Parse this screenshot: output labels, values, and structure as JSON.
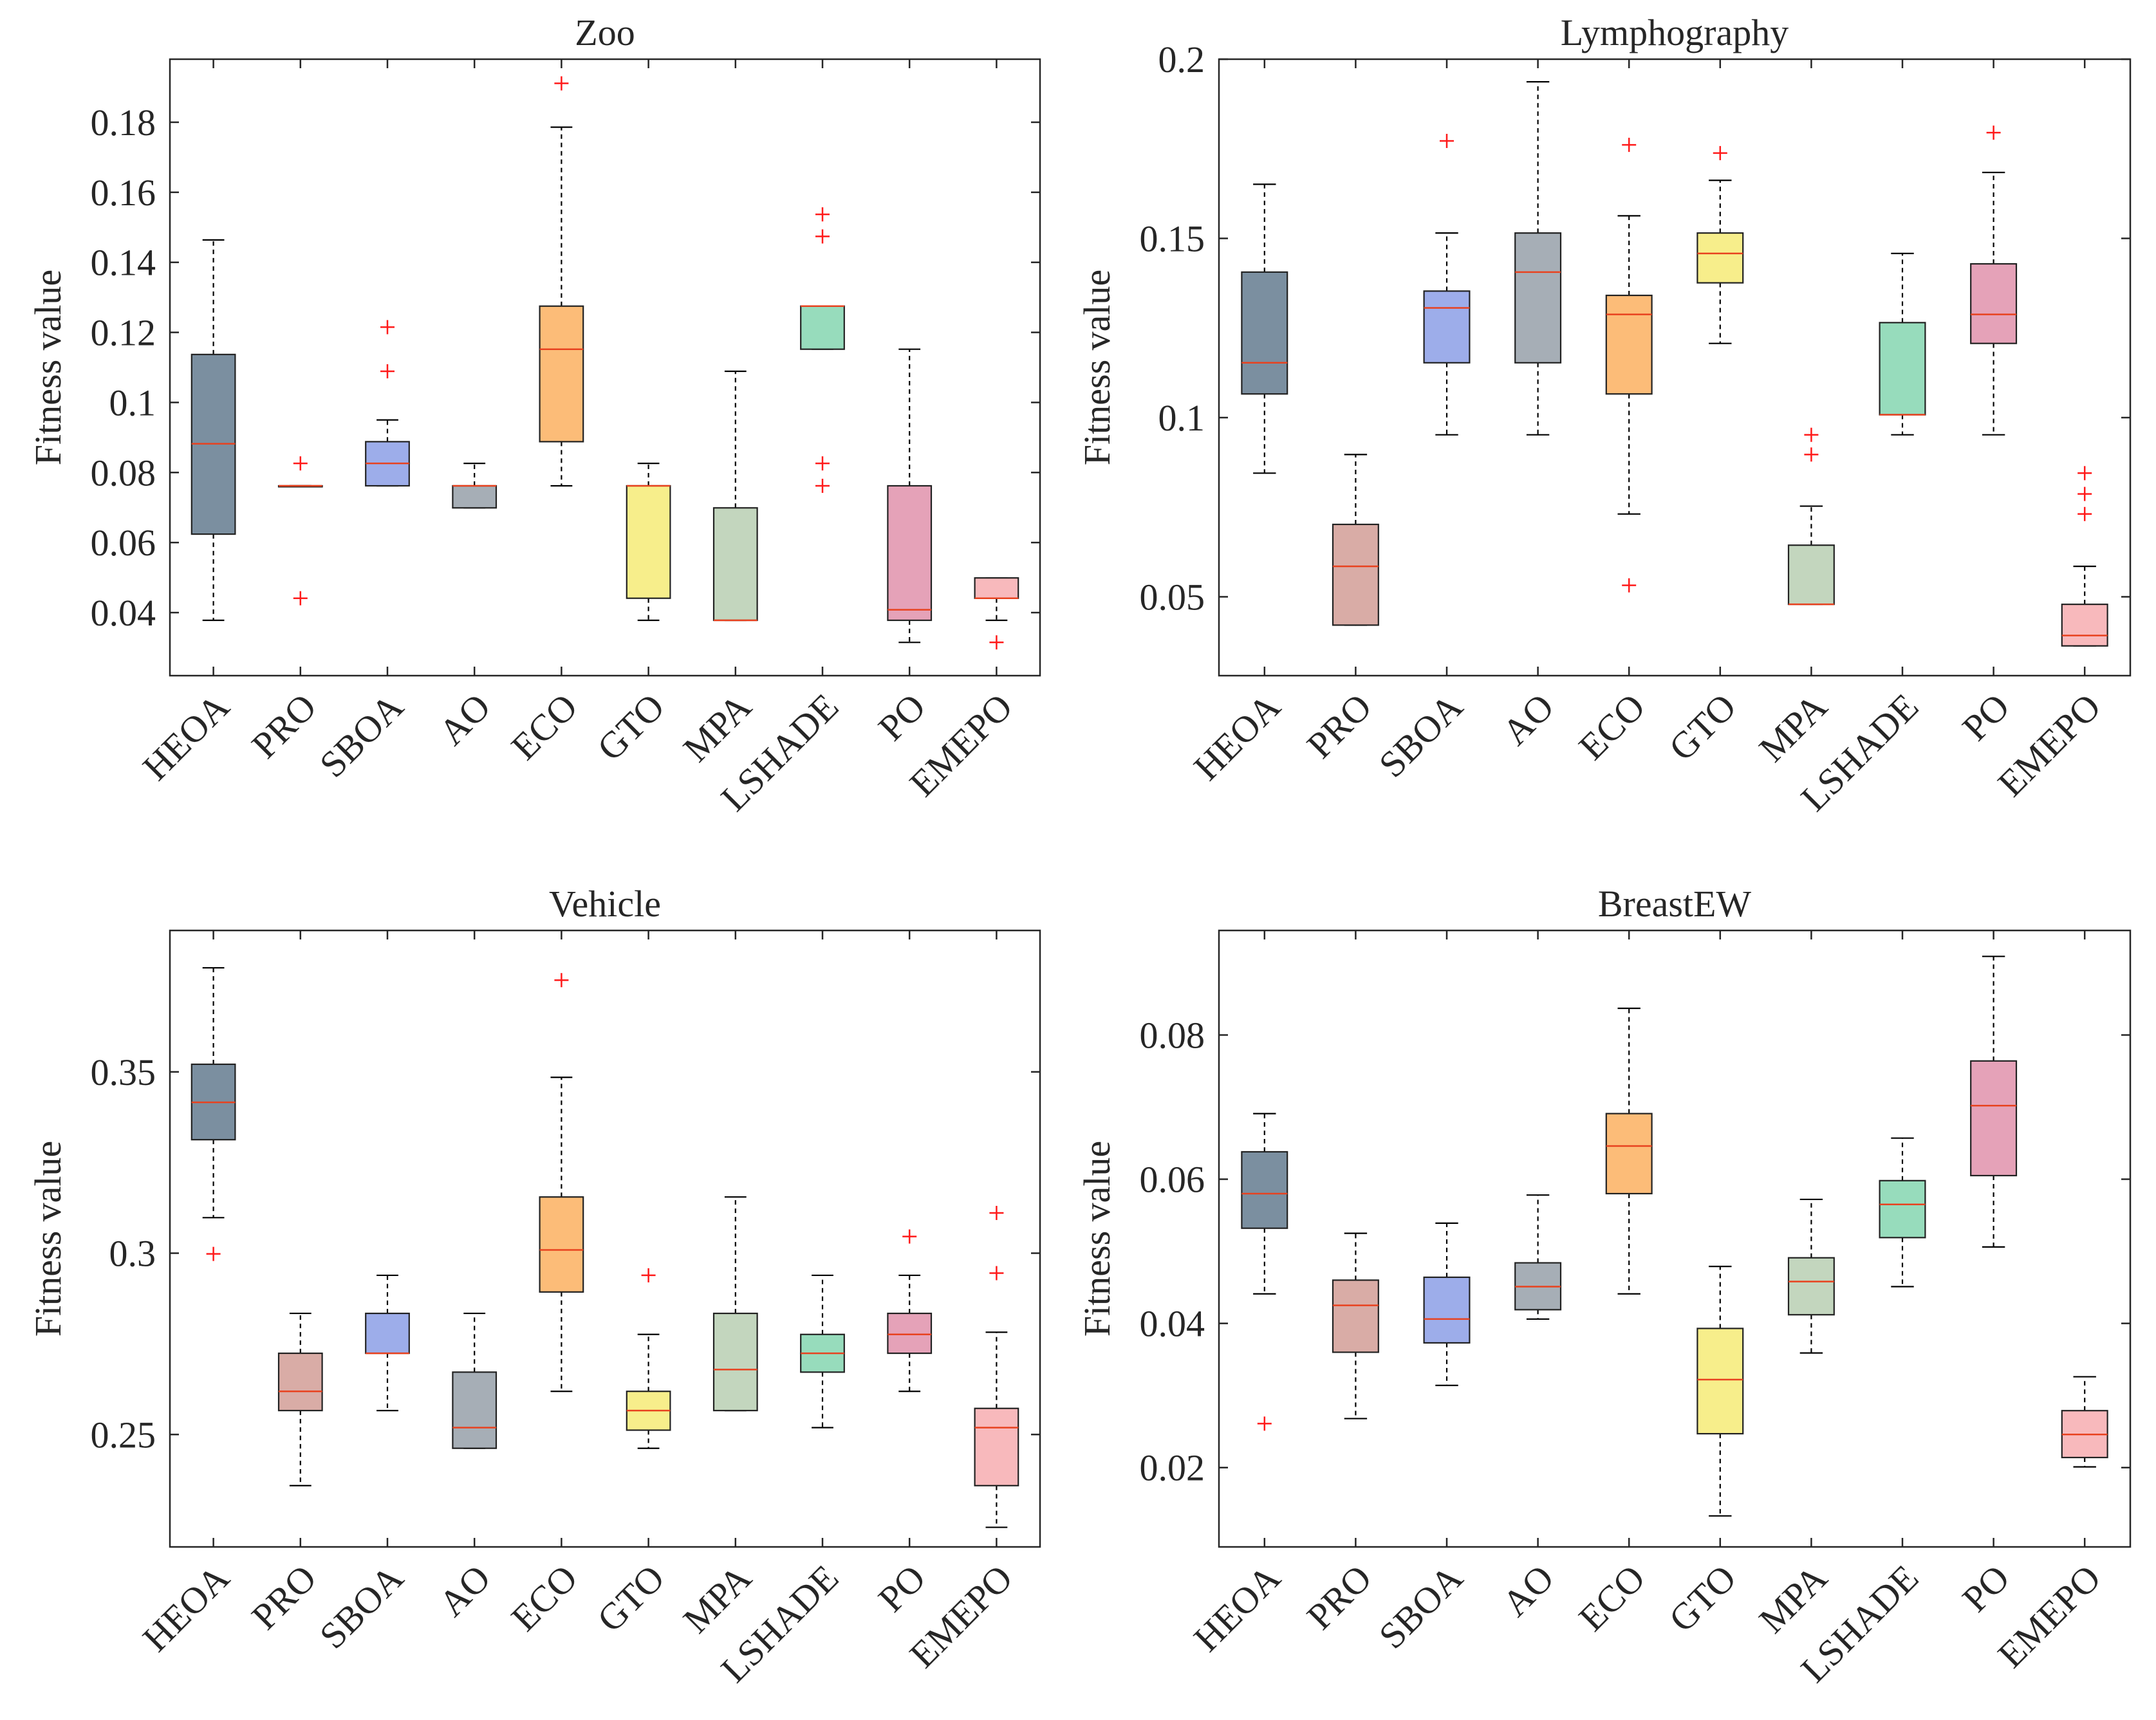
{
  "colors": {
    "axis": "#262626",
    "median": "#e8421f",
    "outlier": "#ff1a1a",
    "whisker": "#000000",
    "boxes": {
      "HEOA": "#7b8fa0",
      "PRO": "#d9aca6",
      "SBOA": "#9dadea",
      "AO": "#a6aeb6",
      "ECO": "#fcbc78",
      "GTO": "#f7ee8b",
      "MPA": "#c3d6be",
      "LSHADE": "#97dcbc",
      "PO": "#e5a2b8",
      "EMEPO": "#f8b9bc"
    }
  },
  "chart_data": [
    {
      "type": "box",
      "title": "Zoo",
      "ylabel": "Fitness value",
      "xlabel": "",
      "ylim": [
        0.022,
        0.198
      ],
      "yticks": [
        0.04,
        0.06,
        0.08,
        0.1,
        0.12,
        0.14,
        0.16,
        0.18
      ],
      "ytick_labels": [
        "0.04",
        "0.06",
        "0.08",
        "0.1",
        "0.12",
        "0.14",
        "0.16",
        "0.18"
      ],
      "categories": [
        "HEOA",
        "PRO",
        "SBOA",
        "AO",
        "ECO",
        "GTO",
        "MPA",
        "LSHADE",
        "PO",
        "EMEPO"
      ],
      "boxes": [
        {
          "name": "HEOA",
          "lower_whisker": 0.0378,
          "q1": 0.0624,
          "median": 0.0882,
          "q3": 0.1137,
          "upper_whisker": 0.1464,
          "outliers": []
        },
        {
          "name": "PRO",
          "lower_whisker": 0.0762,
          "q1": 0.0762,
          "median": 0.0762,
          "q3": 0.0762,
          "upper_whisker": 0.0762,
          "outliers": [
            0.0826,
            0.0441
          ]
        },
        {
          "name": "SBOA",
          "lower_whisker": 0.0762,
          "q1": 0.0762,
          "median": 0.0826,
          "q3": 0.0888,
          "upper_whisker": 0.095,
          "outliers": [
            0.1215,
            0.1089
          ]
        },
        {
          "name": "AO",
          "lower_whisker": 0.0699,
          "q1": 0.0699,
          "median": 0.0762,
          "q3": 0.0762,
          "upper_whisker": 0.0826,
          "outliers": []
        },
        {
          "name": "ECO",
          "lower_whisker": 0.0762,
          "q1": 0.0888,
          "median": 0.1152,
          "q3": 0.1275,
          "upper_whisker": 0.1786,
          "outliers": [
            0.1911
          ]
        },
        {
          "name": "GTO",
          "lower_whisker": 0.0378,
          "q1": 0.0441,
          "median": 0.0762,
          "q3": 0.0762,
          "upper_whisker": 0.0826,
          "outliers": []
        },
        {
          "name": "MPA",
          "lower_whisker": 0.0378,
          "q1": 0.0378,
          "median": 0.0378,
          "q3": 0.0699,
          "upper_whisker": 0.1089,
          "outliers": []
        },
        {
          "name": "LSHADE",
          "lower_whisker": 0.1152,
          "q1": 0.1152,
          "median": 0.1275,
          "q3": 0.1275,
          "upper_whisker": 0.1275,
          "outliers": [
            0.1537,
            0.1474,
            0.0826,
            0.0762
          ]
        },
        {
          "name": "PO",
          "lower_whisker": 0.0315,
          "q1": 0.0378,
          "median": 0.0408,
          "q3": 0.0762,
          "upper_whisker": 0.1152,
          "outliers": []
        },
        {
          "name": "EMEPO",
          "lower_whisker": 0.0378,
          "q1": 0.0441,
          "median": 0.0441,
          "q3": 0.0499,
          "upper_whisker": 0.0499,
          "outliers": [
            0.0315
          ]
        }
      ]
    },
    {
      "type": "box",
      "title": "Lymphography",
      "ylabel": "Fitness value",
      "xlabel": "",
      "ylim": [
        0.028,
        0.2
      ],
      "yticks": [
        0.05,
        0.1,
        0.15,
        0.2
      ],
      "ytick_labels": [
        "0.05",
        "0.1",
        "0.15",
        "0.2"
      ],
      "categories": [
        "HEOA",
        "PRO",
        "SBOA",
        "AO",
        "ECO",
        "GTO",
        "MPA",
        "LSHADE",
        "PO",
        "EMEPO"
      ],
      "boxes": [
        {
          "name": "HEOA",
          "lower_whisker": 0.0845,
          "q1": 0.1066,
          "median": 0.1153,
          "q3": 0.1406,
          "upper_whisker": 0.1651,
          "outliers": []
        },
        {
          "name": "PRO",
          "lower_whisker": 0.0421,
          "q1": 0.0421,
          "median": 0.0585,
          "q3": 0.0702,
          "upper_whisker": 0.0897,
          "outliers": []
        },
        {
          "name": "SBOA",
          "lower_whisker": 0.0952,
          "q1": 0.1153,
          "median": 0.1306,
          "q3": 0.1353,
          "upper_whisker": 0.1515,
          "outliers": [
            0.1772
          ]
        },
        {
          "name": "AO",
          "lower_whisker": 0.0952,
          "q1": 0.1153,
          "median": 0.1406,
          "q3": 0.1515,
          "upper_whisker": 0.1937,
          "outliers": []
        },
        {
          "name": "ECO",
          "lower_whisker": 0.0731,
          "q1": 0.1066,
          "median": 0.1288,
          "q3": 0.1341,
          "upper_whisker": 0.1563,
          "outliers": [
            0.1761,
            0.0532
          ]
        },
        {
          "name": "GTO",
          "lower_whisker": 0.1207,
          "q1": 0.1376,
          "median": 0.1458,
          "q3": 0.1515,
          "upper_whisker": 0.1662,
          "outliers": [
            0.1738
          ]
        },
        {
          "name": "MPA",
          "lower_whisker": 0.0479,
          "q1": 0.0479,
          "median": 0.0479,
          "q3": 0.0644,
          "upper_whisker": 0.0753,
          "outliers": [
            0.0952,
            0.0897
          ]
        },
        {
          "name": "LSHADE",
          "lower_whisker": 0.0952,
          "q1": 0.1008,
          "median": 0.1008,
          "q3": 0.1265,
          "upper_whisker": 0.1458,
          "outliers": []
        },
        {
          "name": "PO",
          "lower_whisker": 0.0952,
          "q1": 0.1207,
          "median": 0.1288,
          "q3": 0.1429,
          "upper_whisker": 0.1684,
          "outliers": [
            0.1795
          ]
        },
        {
          "name": "EMEPO",
          "lower_whisker": 0.0363,
          "q1": 0.0363,
          "median": 0.0392,
          "q3": 0.0479,
          "upper_whisker": 0.0585,
          "outliers": [
            0.0845,
            0.0787,
            0.0731
          ]
        }
      ]
    },
    {
      "type": "box",
      "title": "Vehicle",
      "ylabel": "Fitness value",
      "xlabel": "",
      "ylim": [
        0.219,
        0.389
      ],
      "yticks": [
        0.25,
        0.3,
        0.35
      ],
      "ytick_labels": [
        "0.25",
        "0.3",
        "0.35"
      ],
      "categories": [
        "HEOA",
        "PRO",
        "SBOA",
        "AO",
        "ECO",
        "GTO",
        "MPA",
        "LSHADE",
        "PO",
        "EMEPO"
      ],
      "boxes": [
        {
          "name": "HEOA",
          "lower_whisker": 0.3098,
          "q1": 0.3313,
          "median": 0.3416,
          "q3": 0.3521,
          "upper_whisker": 0.3787,
          "outliers": [
            0.2998
          ]
        },
        {
          "name": "PRO",
          "lower_whisker": 0.2359,
          "q1": 0.2566,
          "median": 0.2619,
          "q3": 0.2724,
          "upper_whisker": 0.2834,
          "outliers": []
        },
        {
          "name": "SBOA",
          "lower_whisker": 0.2566,
          "q1": 0.2724,
          "median": 0.2724,
          "q3": 0.2834,
          "upper_whisker": 0.2939,
          "outliers": []
        },
        {
          "name": "AO",
          "lower_whisker": 0.2462,
          "q1": 0.2462,
          "median": 0.2519,
          "q3": 0.2672,
          "upper_whisker": 0.2834,
          "outliers": []
        },
        {
          "name": "ECO",
          "lower_whisker": 0.2619,
          "q1": 0.2893,
          "median": 0.3009,
          "q3": 0.3155,
          "upper_whisker": 0.3485,
          "outliers": [
            0.3753
          ]
        },
        {
          "name": "GTO",
          "lower_whisker": 0.2462,
          "q1": 0.2512,
          "median": 0.2566,
          "q3": 0.2619,
          "upper_whisker": 0.2776,
          "outliers": [
            0.2939
          ]
        },
        {
          "name": "MPA",
          "lower_whisker": 0.2566,
          "q1": 0.2566,
          "median": 0.2679,
          "q3": 0.2834,
          "upper_whisker": 0.3155,
          "outliers": []
        },
        {
          "name": "LSHADE",
          "lower_whisker": 0.2519,
          "q1": 0.2672,
          "median": 0.2724,
          "q3": 0.2776,
          "upper_whisker": 0.2939,
          "outliers": []
        },
        {
          "name": "PO",
          "lower_whisker": 0.2619,
          "q1": 0.2724,
          "median": 0.2776,
          "q3": 0.2834,
          "upper_whisker": 0.2939,
          "outliers": [
            0.3046
          ]
        },
        {
          "name": "EMEPO",
          "lower_whisker": 0.2244,
          "q1": 0.2359,
          "median": 0.2519,
          "q3": 0.2572,
          "upper_whisker": 0.2782,
          "outliers": [
            0.3111,
            0.2945
          ]
        }
      ]
    },
    {
      "type": "box",
      "title": "BreastEW",
      "ylabel": "Fitness value",
      "xlabel": "",
      "ylim": [
        0.009,
        0.0945
      ],
      "yticks": [
        0.02,
        0.04,
        0.06,
        0.08
      ],
      "ytick_labels": [
        "0.02",
        "0.04",
        "0.06",
        "0.08"
      ],
      "categories": [
        "HEOA",
        "PRO",
        "SBOA",
        "AO",
        "ECO",
        "GTO",
        "MPA",
        "LSHADE",
        "PO",
        "EMEPO"
      ],
      "boxes": [
        {
          "name": "HEOA",
          "lower_whisker": 0.0441,
          "q1": 0.0532,
          "median": 0.058,
          "q3": 0.0638,
          "upper_whisker": 0.0691,
          "outliers": [
            0.0261
          ]
        },
        {
          "name": "PRO",
          "lower_whisker": 0.0268,
          "q1": 0.036,
          "median": 0.0425,
          "q3": 0.046,
          "upper_whisker": 0.0525,
          "outliers": []
        },
        {
          "name": "SBOA",
          "lower_whisker": 0.0314,
          "q1": 0.0373,
          "median": 0.0406,
          "q3": 0.0464,
          "upper_whisker": 0.0539,
          "outliers": []
        },
        {
          "name": "AO",
          "lower_whisker": 0.0406,
          "q1": 0.0419,
          "median": 0.0451,
          "q3": 0.0484,
          "upper_whisker": 0.0578,
          "outliers": []
        },
        {
          "name": "ECO",
          "lower_whisker": 0.0441,
          "q1": 0.058,
          "median": 0.0646,
          "q3": 0.0691,
          "upper_whisker": 0.0837,
          "outliers": []
        },
        {
          "name": "GTO",
          "lower_whisker": 0.0133,
          "q1": 0.0247,
          "median": 0.0322,
          "q3": 0.0393,
          "upper_whisker": 0.0479,
          "outliers": []
        },
        {
          "name": "MPA",
          "lower_whisker": 0.0359,
          "q1": 0.0412,
          "median": 0.0458,
          "q3": 0.0491,
          "upper_whisker": 0.0572,
          "outliers": []
        },
        {
          "name": "LSHADE",
          "lower_whisker": 0.0451,
          "q1": 0.0519,
          "median": 0.0565,
          "q3": 0.0598,
          "upper_whisker": 0.0657,
          "outliers": []
        },
        {
          "name": "PO",
          "lower_whisker": 0.0506,
          "q1": 0.0605,
          "median": 0.0702,
          "q3": 0.0764,
          "upper_whisker": 0.0909,
          "outliers": []
        },
        {
          "name": "EMEPO",
          "lower_whisker": 0.0201,
          "q1": 0.0214,
          "median": 0.0246,
          "q3": 0.0279,
          "upper_whisker": 0.0326,
          "outliers": []
        }
      ]
    }
  ]
}
